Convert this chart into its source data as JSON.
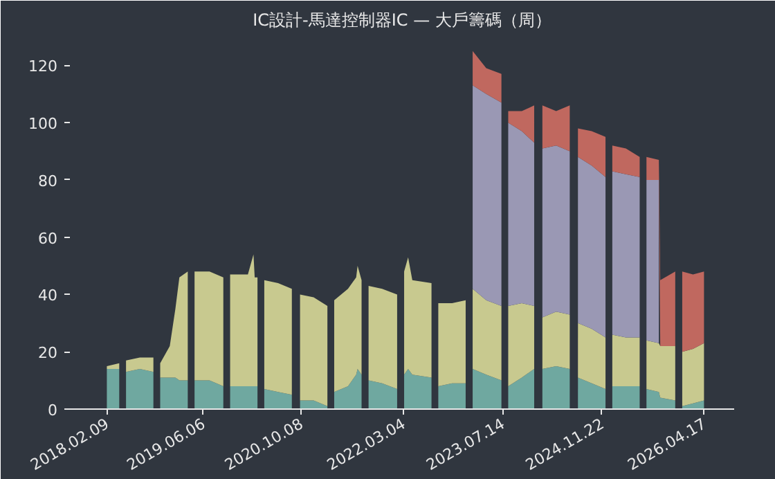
{
  "chart_data": {
    "type": "area",
    "title": "IC設計-馬達控制器IC — 大戶籌碼（周）",
    "stacked": true,
    "x": [
      "2018-02-09",
      "2018-04-12",
      "2018-04-29",
      "2018-05-16",
      "2018-07-24",
      "2018-09-30",
      "2018-10-17",
      "2018-11-03",
      "2018-12-21",
      "2019-01-18",
      "2019-02-07",
      "2019-03-21",
      "2019-04-07",
      "2019-04-24",
      "2019-07-08",
      "2019-09-15",
      "2019-10-02",
      "2019-10-19",
      "2020-01-16",
      "2020-02-13",
      "2020-02-19",
      "2020-03-04",
      "2020-03-21",
      "2020-04-07",
      "2020-06-15",
      "2020-08-23",
      "2020-09-12",
      "2020-10-03",
      "2020-12-10",
      "2021-02-17",
      "2021-03-06",
      "2021-03-23",
      "2021-05-31",
      "2021-07-11",
      "2021-07-18",
      "2021-08-07",
      "2021-08-24",
      "2021-09-11",
      "2021-11-18",
      "2022-02-01",
      "2022-02-19",
      "2022-03-08",
      "2022-03-28",
      "2022-04-18",
      "2022-07-23",
      "2022-08-09",
      "2022-08-26",
      "2022-11-03",
      "2023-01-10",
      "2023-01-27",
      "2023-02-14",
      "2023-04-23",
      "2023-07-08",
      "2023-07-25",
      "2023-08-11",
      "2023-10-18",
      "2023-12-19",
      "2024-01-09",
      "2024-01-29",
      "2024-04-07",
      "2024-06-14",
      "2024-07-05",
      "2024-07-25",
      "2024-10-02",
      "2024-12-10",
      "2024-12-27",
      "2025-01-13",
      "2025-03-22",
      "2025-05-30",
      "2025-06-16",
      "2025-07-03",
      "2025-09-03",
      "2025-09-10",
      "2025-11-24",
      "2025-12-11",
      "2025-12-29",
      "2026-02-21",
      "2026-04-17"
    ],
    "series": [
      {
        "color": "#6fa8a0",
        "values": [
          14,
          14,
          null,
          13,
          14,
          13,
          null,
          11,
          11,
          11,
          10,
          10,
          null,
          10,
          10,
          8,
          null,
          8,
          8,
          8,
          8,
          8,
          null,
          7,
          6,
          5,
          null,
          3,
          3,
          1,
          null,
          6,
          8,
          12,
          14,
          12,
          null,
          10,
          9,
          7,
          null,
          12,
          14,
          12,
          11,
          null,
          8,
          9,
          9,
          null,
          14,
          12,
          10,
          null,
          8,
          11,
          14,
          null,
          14,
          15,
          14,
          null,
          11,
          9,
          7,
          null,
          8,
          8,
          8,
          null,
          7,
          6,
          4,
          3,
          null,
          1,
          2,
          3
        ]
      },
      {
        "color": "#c8c98f",
        "values": [
          1,
          2,
          null,
          4,
          4,
          5,
          null,
          5,
          11,
          24,
          36,
          38,
          null,
          38,
          38,
          38,
          null,
          39,
          39,
          46,
          38,
          38,
          null,
          38,
          38,
          37,
          null,
          37,
          36,
          35,
          null,
          32,
          34,
          34,
          36,
          33,
          null,
          33,
          33,
          33,
          null,
          36,
          39,
          33,
          33,
          null,
          29,
          28,
          29,
          null,
          28,
          26,
          26,
          null,
          28,
          26,
          22,
          null,
          18,
          19,
          19,
          null,
          19,
          19,
          18,
          null,
          18,
          17,
          17,
          null,
          17,
          17,
          18,
          19,
          null,
          19,
          19,
          20
        ]
      },
      {
        "color": "#9a98b4",
        "values": [
          null,
          null,
          null,
          null,
          null,
          null,
          null,
          null,
          null,
          null,
          null,
          null,
          null,
          null,
          null,
          null,
          null,
          null,
          null,
          null,
          null,
          null,
          null,
          null,
          null,
          null,
          null,
          null,
          null,
          null,
          null,
          null,
          null,
          null,
          null,
          null,
          null,
          null,
          null,
          null,
          null,
          null,
          null,
          null,
          null,
          null,
          null,
          null,
          null,
          null,
          71,
          72,
          71,
          null,
          64,
          60,
          57,
          null,
          59,
          58,
          57,
          null,
          58,
          57,
          56,
          null,
          57,
          57,
          56,
          null,
          56,
          57,
          null,
          null,
          null,
          null,
          null,
          null
        ]
      },
      {
        "color": "#c0685f",
        "values": [
          null,
          null,
          null,
          null,
          null,
          null,
          null,
          null,
          null,
          null,
          null,
          null,
          null,
          null,
          null,
          null,
          null,
          null,
          null,
          null,
          null,
          null,
          null,
          null,
          null,
          null,
          null,
          null,
          null,
          null,
          null,
          null,
          null,
          null,
          null,
          null,
          null,
          null,
          null,
          null,
          null,
          null,
          null,
          null,
          null,
          null,
          null,
          null,
          null,
          null,
          12,
          9,
          10,
          null,
          4,
          7,
          13,
          null,
          15,
          12,
          16,
          null,
          10,
          12,
          14,
          null,
          9,
          9,
          7,
          null,
          8,
          7,
          23,
          26,
          null,
          28,
          26,
          25
        ]
      }
    ],
    "xlim": [
      "2017-08-08",
      "2026-09-15"
    ],
    "xticks": [
      {
        "value": "2018-02-09",
        "label": "2018.02.09"
      },
      {
        "value": "2019-06-06",
        "label": "2019.06.06"
      },
      {
        "value": "2020-10-08",
        "label": "2020.10.08"
      },
      {
        "value": "2022-03-04",
        "label": "2022.03.04"
      },
      {
        "value": "2023-07-14",
        "label": "2023.07.14"
      },
      {
        "value": "2024-11-22",
        "label": "2024.11.22"
      },
      {
        "value": "2026-04-17",
        "label": "2026.04.17"
      }
    ],
    "ylim": [
      0,
      130
    ],
    "yticks": [
      0,
      20,
      40,
      60,
      80,
      100,
      120
    ],
    "grid": false
  }
}
